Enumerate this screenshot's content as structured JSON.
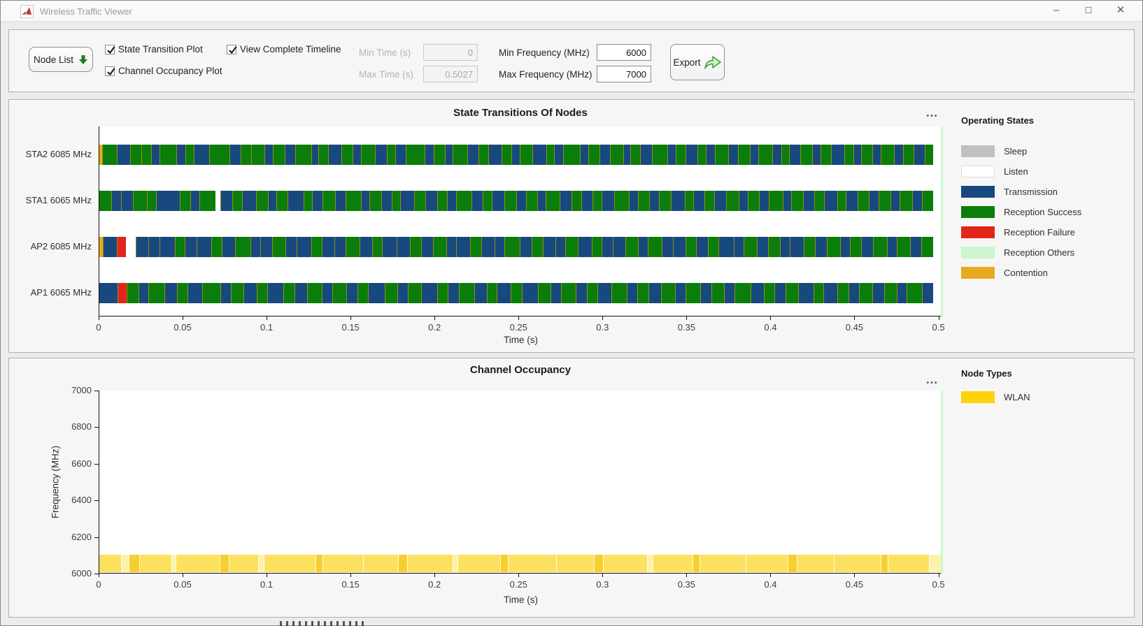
{
  "window": {
    "title": "Wireless Traffic Viewer",
    "controls": {
      "minimize": "–",
      "maximize": "☐",
      "close": "✕"
    }
  },
  "toolbar": {
    "node_list_label": "Node List",
    "checkboxes": [
      {
        "label": "State Transition Plot",
        "checked": true
      },
      {
        "label": "Channel Occupancy Plot",
        "checked": true
      },
      {
        "label": "View Complete Timeline",
        "checked": true
      }
    ],
    "fields": [
      {
        "label": "Min Time (s)",
        "value": "0",
        "disabled": true
      },
      {
        "label": "Max Time (s)",
        "value": "0.5027",
        "disabled": true
      },
      {
        "label": "Min Frequency (MHz)",
        "value": "6000",
        "disabled": false
      },
      {
        "label": "Max Frequency (MHz)",
        "value": "7000",
        "disabled": false
      }
    ],
    "export_label": "Export"
  },
  "palette": {
    "G": "#0B7D0B",
    "B": "#17497F",
    "R": "#E1251B",
    "W": "#FFFFFF",
    "O": "#E9A91F",
    "Y": "#FBE15F",
    "P": "#FDF2AC",
    "D": "#F8CE2F"
  },
  "state_chart": {
    "title": "State Transitions Of Nodes",
    "menu_icon": "⋯",
    "xlabel": "Time (s)",
    "x_ticks": [
      0,
      0.05,
      0.1,
      0.15,
      0.2,
      0.25,
      0.3,
      0.35,
      0.4,
      0.45,
      0.5
    ],
    "x_max": 0.5027,
    "end_marker_color": "#CCF6CC",
    "rows": [
      {
        "label": "STA2 6085 MHz",
        "segments": "O3,G16,B14,G12,G10,B9,G18,B10,G9,B16,G22,B12,G11,G14,B9,G13,B11,G17,B8,G10,B14,G12,B9,G15,B13,G9,B11,G20,B10,G12,B8,G16,B12,G10,B14,G11,B9,G13,B15,G8,B10,G18,B9,G12,B11,G14,B8,G10,B13,G16,B9,G11,B12,G9,B10,G14,B11,G12,B9,G15,B10,G8,B12,G13,B9,G11,B14,G10,B8,G12,B9,G14,B10,G11,B12,G9"
      },
      {
        "label": "STA1 6065 MHz",
        "segments": "G12,B10,B12,G14,G9,B24,G11,B9,G16,W5,B12,G10,B14,G12,B9,G11,B16,G9,B10,G13,B11,G15,B9,G12,B10,G9,B14,G11,B12,G10,B9,G16,B11,G9,B13,G12,B10,G11,B9,G14,B12,G10,B11,G9,B13,G15,B9,G11,B10,G12,B14,G9,B11,G10,B12,G13,B9,G11,B10,G14,B9,G12,B11,G10,B13,G9,B12,G11,B10,G12,B9,G13,B10,G11"
      },
      {
        "label": "AP2 6085 MHz",
        "segments": "O3,B13,R8,W9,B12,B10,B14,G9,B11,B13,G10,B12,G14,B9,B11,G12,B10,B14,G9,B12,B10,G13,B11,G9,B14,B12,G10,B11,G12,B9,B13,G10,B12,B9,G14,B11,G10,B12,B9,G11,B13,G9,B10,B12,G11,B9,G13,B10,B12,G9,B11,G10,B14,B9,G12,B10,G11,B9,B13,G10,B11,G12,B9,G10,B11,G13,B9,G12,B10,G11"
      },
      {
        "label": "AP1 6065 MHz",
        "segments": "B16,R8,G10,B9,G14,B11,G9,B13,G16,B9,G11,B12,G9,B14,G10,B11,G13,B9,G12,B10,G9,B15,G11,B9,G12,B14,G9,B10,G13,B11,G9,B12,G10,B14,G11,B9,G13,B10,G9,B12,G14,B9,G10,B11,G12,B9,G13,B10,G11,B9,G14,B12,G9,B10,G11,B13,G9,B12,G10,B9,G12,B10,G11,B9,G13,B10"
      }
    ],
    "legend": {
      "title": "Operating States",
      "entries": [
        {
          "label": "Sleep",
          "color": "#C0C0C0"
        },
        {
          "label": "Listen",
          "color": "#FFFFFF"
        },
        {
          "label": "Transmission",
          "color": "#17497F"
        },
        {
          "label": "Reception Success",
          "color": "#0B7D0B"
        },
        {
          "label": "Reception Failure",
          "color": "#E1251B"
        },
        {
          "label": "Reception Others",
          "color": "#CCF6CC"
        },
        {
          "label": "Contention",
          "color": "#E9A91F"
        }
      ]
    },
    "chart_data": {
      "type": "heatmap",
      "title": "State Transitions Of Nodes",
      "xlabel": "Time (s)",
      "x_range": [
        0,
        0.5027
      ],
      "categories": [
        "AP1 6065 MHz",
        "AP2 6085 MHz",
        "STA1 6065 MHz",
        "STA2 6085 MHz"
      ],
      "states": [
        "Sleep",
        "Listen",
        "Transmission",
        "Reception Success",
        "Reception Failure",
        "Reception Others",
        "Contention"
      ],
      "notes": "Each node row alternates densely between Transmission and Reception Success states over 0 to 0.5027 s; AP1 and AP2 show one Reception Failure event near t=0.01 s; thin Contention slivers separate states; timeline end marker (Reception Others color) at t=0.5027 s."
    }
  },
  "occupancy_chart": {
    "title": "Channel Occupancy",
    "menu_icon": "⋯",
    "xlabel": "Time (s)",
    "ylabel": "Frequency (MHz)",
    "x_ticks": [
      0,
      0.05,
      0.1,
      0.15,
      0.2,
      0.25,
      0.3,
      0.35,
      0.4,
      0.45,
      0.5
    ],
    "x_max": 0.5027,
    "y_ticks": [
      7000,
      6800,
      6600,
      6400,
      6200,
      6000
    ],
    "y_range": [
      6000,
      7000
    ],
    "end_marker_color": "#CCF6CC",
    "band": {
      "freq_low": 6008,
      "freq_high": 6103,
      "segments": "Y30,P10,D14,Y44,P6,Y60,D12,Y40,P8,Y70,D10,Y55,Y48,D12,Y62,P7,Y58,D10,Y66,Y52,D12,Y60,P8,Y54,D10,Y62,Y58,D12,Y50,Y64,D10,Y56,P16"
    },
    "legend": {
      "title": "Node Types",
      "entries": [
        {
          "label": "WLAN",
          "color": "#FFD20A"
        }
      ]
    },
    "chart_data": {
      "type": "area",
      "title": "Channel Occupancy",
      "xlabel": "Time (s)",
      "ylabel": "Frequency (MHz)",
      "x_range": [
        0,
        0.5027
      ],
      "ylim": [
        6000,
        7000
      ],
      "series": [
        {
          "name": "WLAN",
          "description": "Continuous yellow occupancy band covering approx. 6000-6100 MHz (channels at 6065 and 6085 MHz) across the whole 0-0.5027 s timeline"
        }
      ]
    }
  }
}
